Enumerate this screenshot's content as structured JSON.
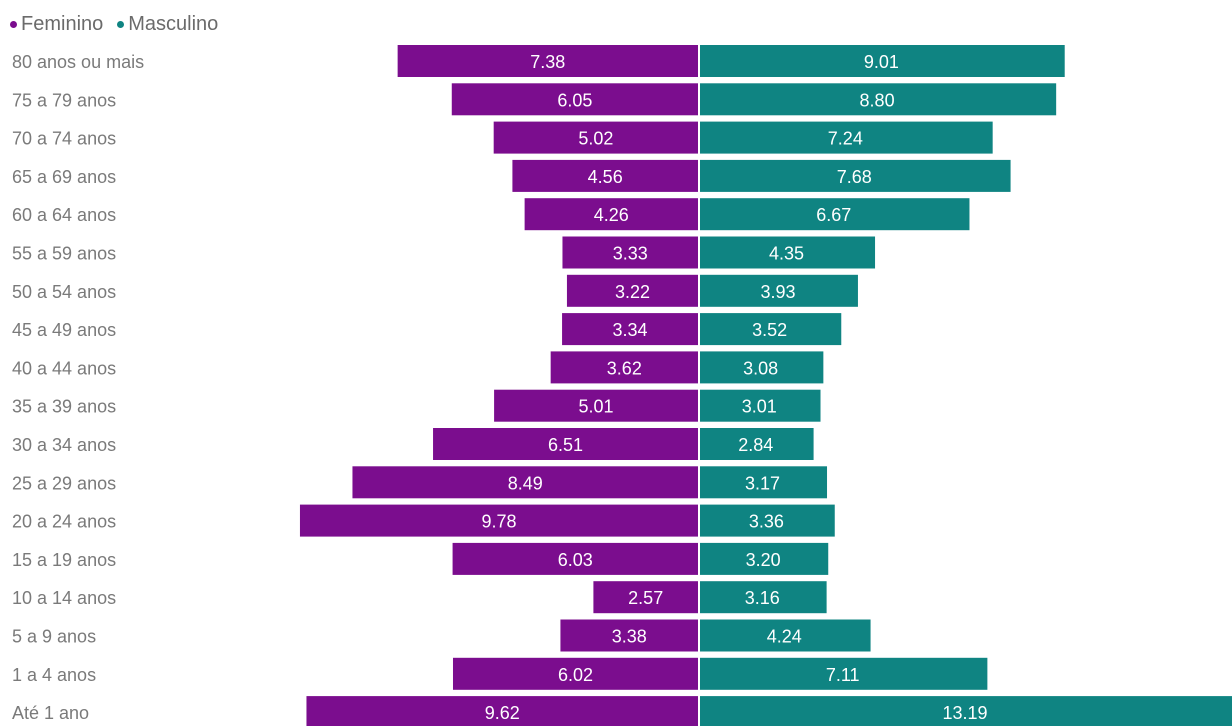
{
  "chart_data": {
    "type": "bar",
    "orientation": "horizontal-diverging",
    "title": "",
    "xlabel": "",
    "ylabel": "",
    "legend_position": "top-left",
    "grid": false,
    "categories": [
      "80 anos ou mais",
      "75 a 79 anos",
      "70 a 74 anos",
      "65 a 69 anos",
      "60 a 64 anos",
      "55 a 59 anos",
      "50 a 54 anos",
      "45 a 49 anos",
      "40 a 44 anos",
      "35 a 39 anos",
      "30 a 34 anos",
      "25 a 29 anos",
      "20 a 24 anos",
      "15 a 19 anos",
      "10 a 14 anos",
      "5 a 9 anos",
      "1 a 4 anos",
      "Até 1 ano"
    ],
    "series": [
      {
        "name": "Feminino",
        "color": "#7b0d8e",
        "side": "left",
        "values": [
          7.38,
          6.05,
          5.02,
          4.56,
          4.26,
          3.33,
          3.22,
          3.34,
          3.62,
          5.01,
          6.51,
          8.49,
          9.78,
          6.03,
          2.57,
          3.38,
          6.02,
          9.62
        ],
        "labels": [
          "7.38",
          "6.05",
          "5.02",
          "4.56",
          "4.26",
          "3.33",
          "3.22",
          "3.34",
          "3.62",
          "5.01",
          "6.51",
          "8.49",
          "9.78",
          "6.03",
          "2.57",
          "3.38",
          "6.02",
          "9.62"
        ]
      },
      {
        "name": "Masculino",
        "color": "#0f8482",
        "side": "right",
        "values": [
          9.01,
          8.8,
          7.24,
          7.68,
          6.67,
          4.35,
          3.93,
          3.52,
          3.08,
          3.01,
          2.84,
          3.17,
          3.36,
          3.2,
          3.16,
          4.24,
          7.11,
          13.19
        ],
        "labels": [
          "9.01",
          "8.80",
          "7.24",
          "7.68",
          "6.67",
          "4.35",
          "3.93",
          "3.52",
          "3.08",
          "3.01",
          "2.84",
          "3.17",
          "3.36",
          "3.20",
          "3.16",
          "4.24",
          "7.11",
          "13.19"
        ]
      }
    ]
  }
}
